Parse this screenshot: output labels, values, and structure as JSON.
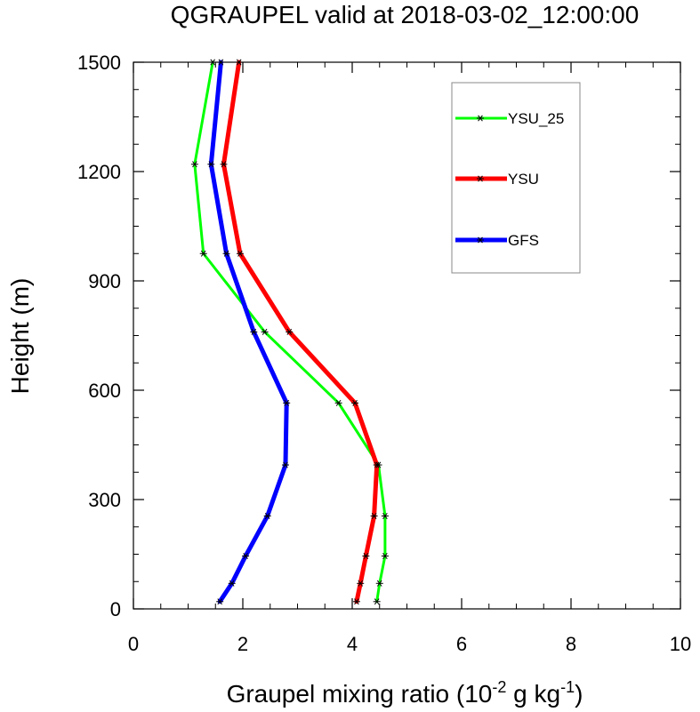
{
  "chart_data": {
    "type": "line",
    "title": "QGRAUPEL valid at 2018-03-02_12:00:00",
    "xlabel": {
      "prefix": "Graupel mixing ratio (10",
      "exp1": "-2",
      "mid": " g kg",
      "exp2": "-1",
      "suffix": ")"
    },
    "ylabel": "Height (m)",
    "xlim": [
      0,
      10
    ],
    "ylim": [
      0,
      1500
    ],
    "xticks": [
      0,
      2,
      4,
      6,
      8,
      10
    ],
    "yticks": [
      0,
      300,
      600,
      900,
      1200,
      1500
    ],
    "legend_placement": "top-right",
    "series": [
      {
        "name": "YSU_25",
        "color": "#00ff00",
        "line_width": 3,
        "points": [
          {
            "x": 4.45,
            "y": 20
          },
          {
            "x": 4.5,
            "y": 70
          },
          {
            "x": 4.6,
            "y": 145
          },
          {
            "x": 4.6,
            "y": 255
          },
          {
            "x": 4.48,
            "y": 395
          },
          {
            "x": 3.75,
            "y": 565
          },
          {
            "x": 2.4,
            "y": 760
          },
          {
            "x": 1.28,
            "y": 975
          },
          {
            "x": 1.12,
            "y": 1220
          },
          {
            "x": 1.45,
            "y": 1500
          }
        ]
      },
      {
        "name": "YSU",
        "color": "#ff0000",
        "line_width": 5,
        "points": [
          {
            "x": 4.08,
            "y": 20
          },
          {
            "x": 4.15,
            "y": 70
          },
          {
            "x": 4.25,
            "y": 145
          },
          {
            "x": 4.4,
            "y": 255
          },
          {
            "x": 4.45,
            "y": 395
          },
          {
            "x": 4.05,
            "y": 565
          },
          {
            "x": 2.85,
            "y": 760
          },
          {
            "x": 1.95,
            "y": 975
          },
          {
            "x": 1.65,
            "y": 1220
          },
          {
            "x": 1.93,
            "y": 1500
          }
        ]
      },
      {
        "name": "GFS",
        "color": "#0000ff",
        "line_width": 5,
        "points": [
          {
            "x": 1.58,
            "y": 20
          },
          {
            "x": 1.8,
            "y": 70
          },
          {
            "x": 2.05,
            "y": 145
          },
          {
            "x": 2.45,
            "y": 255
          },
          {
            "x": 2.78,
            "y": 395
          },
          {
            "x": 2.8,
            "y": 565
          },
          {
            "x": 2.2,
            "y": 760
          },
          {
            "x": 1.7,
            "y": 975
          },
          {
            "x": 1.42,
            "y": 1220
          },
          {
            "x": 1.6,
            "y": 1500
          }
        ]
      }
    ]
  }
}
